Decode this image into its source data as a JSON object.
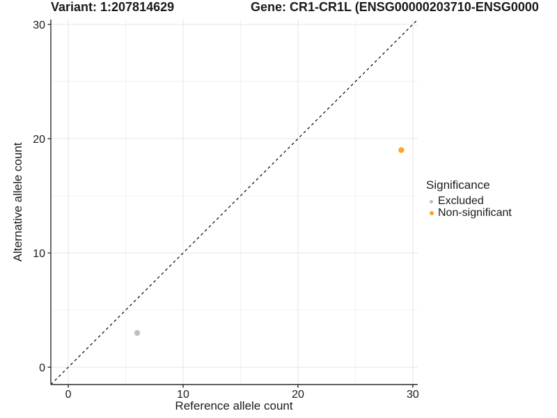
{
  "figure": {
    "background": "#FFFFFF"
  },
  "legend": {
    "title": "Significance",
    "items": [
      {
        "label": "Excluded",
        "color": "#BDBDBF",
        "key_diameter": 5
      },
      {
        "label": "Non-significant",
        "color": "#FFA01E",
        "key_diameter": 6
      }
    ]
  },
  "chart_data": {
    "type": "scatter",
    "title_left": "Variant: 1:207814629",
    "title_right": "Gene: CR1-CR1L (ENSG00000203710-ENSG0000",
    "xlabel": "Reference allele count",
    "ylabel": "Alternative allele count",
    "x_ticks": [
      0,
      10,
      20,
      30
    ],
    "y_ticks": [
      0,
      10,
      20,
      30
    ],
    "x_minor_ticks": [
      5,
      15,
      25
    ],
    "y_minor_ticks": [
      5,
      15,
      25
    ],
    "x_range": [
      -1.52,
      30.43
    ],
    "y_range": [
      -1.52,
      30.43
    ],
    "grid": "major+minor",
    "legend_position": "right",
    "legend_title": "Significance",
    "series": [
      {
        "name": "Excluded",
        "color": "#BDBDBF",
        "marker_radius": 4.2,
        "points": [
          {
            "x": 6,
            "y": 3
          }
        ]
      },
      {
        "name": "Non-significant",
        "color": "#FFA01E",
        "marker_radius": 4.2,
        "points": [
          {
            "x": 29,
            "y": 19
          }
        ]
      }
    ],
    "reference_line": {
      "type": "identity",
      "equation": "y = x",
      "style": "dashed",
      "color": "#000000"
    }
  },
  "colors": {
    "grid_major": "#E4E4E4",
    "grid_minor": "#F2F2F2",
    "axis_line": "#2B2B2B",
    "text": "#1A1A1A"
  }
}
